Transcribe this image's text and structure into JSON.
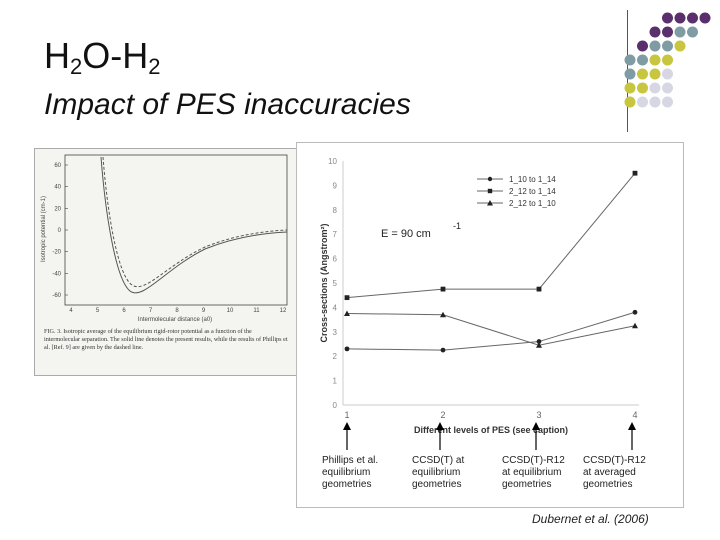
{
  "slide": {
    "title_base": "H",
    "title_sub1": "2",
    "title_mid": "O-H",
    "title_sub2": "2",
    "subtitle": "Impact of PES inaccuracies",
    "citation": "Dubernet et al. (2006)"
  },
  "colors": {
    "purple": "#5a2f6b",
    "gray_blue": "#7f9ca4",
    "olive": "#c8c53e",
    "light": "#d6d7e3"
  },
  "left_figure": {
    "y_ticks": [
      "60",
      "40",
      "20",
      "0",
      "-20",
      "-40",
      "-60"
    ],
    "x_ticks": [
      "4",
      "5",
      "6",
      "7",
      "8",
      "9",
      "10",
      "11",
      "12"
    ],
    "xlabel": "Intermolecular distance (a0)",
    "ylabel": "Isotropic potential (cm-1)",
    "caption": "FIG. 3. Isotropic average of the equilibrium rigid-rotor potential as a function of the intermolecular separation. The solid line denotes the present results, while the results of Phillips et al. [Ref. 9] are given by the dashed line."
  },
  "chart_data": {
    "type": "line",
    "ylabel": "Cross-sections (Angstrom²)",
    "xlabel": "Different levels of PES (see caption)",
    "annotation": "E = 90 cm",
    "annotation_sup": "-1",
    "x": [
      1,
      2,
      3,
      4
    ],
    "x_ticks": [
      "1",
      "2",
      "3",
      "4"
    ],
    "y_ticks": [
      "0",
      "1",
      "2",
      "3",
      "4",
      "5",
      "6",
      "7",
      "8",
      "9",
      "10"
    ],
    "ylim": [
      0,
      10
    ],
    "series": [
      {
        "name": "1_10 to 1_14",
        "marker": "circle",
        "values": [
          2.3,
          2.25,
          2.6,
          3.8
        ]
      },
      {
        "name": "2_12 to 1_14",
        "marker": "square",
        "values": [
          4.4,
          4.75,
          4.75,
          9.5
        ]
      },
      {
        "name": "2_12 to 1_10",
        "marker": "triangle",
        "values": [
          3.75,
          3.7,
          2.45,
          3.25
        ]
      }
    ],
    "legend_position": "top-right"
  },
  "notes": [
    {
      "lines": [
        "Phillips et al.",
        "equilibrium",
        "geometries"
      ]
    },
    {
      "lines": [
        "CCSD(T) at",
        "equilibrium",
        "geometries"
      ]
    },
    {
      "lines": [
        "CCSD(T)-R12",
        "at equilibrium",
        "geometries"
      ]
    },
    {
      "lines": [
        "CCSD(T)-R12",
        "at averaged",
        "geometries"
      ]
    }
  ]
}
